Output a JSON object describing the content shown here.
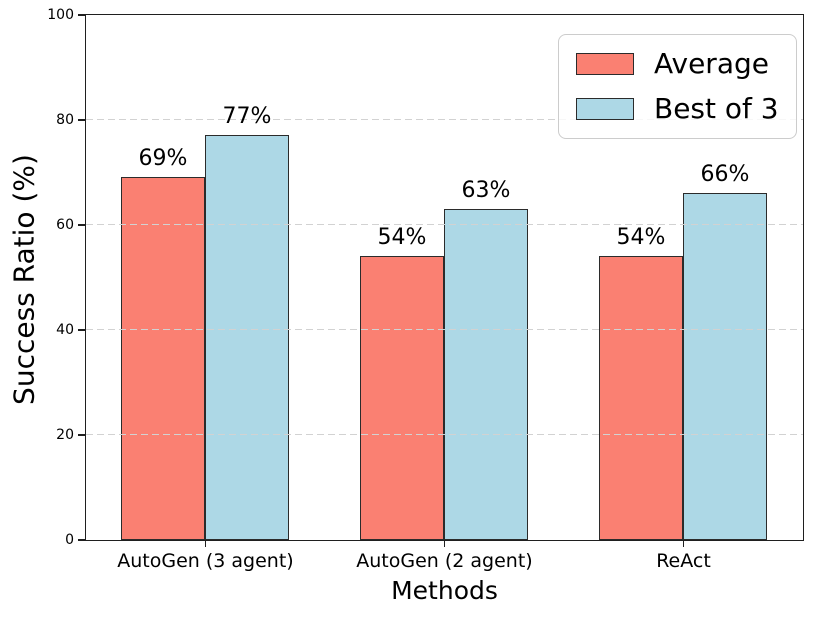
{
  "chart_data": {
    "type": "bar",
    "title": "",
    "xlabel": "Methods",
    "ylabel": "Success Ratio (%)",
    "categories": [
      "AutoGen (3 agent)",
      "AutoGen (2 agent)",
      "ReAct"
    ],
    "series": [
      {
        "name": "Average",
        "color": "#FA8072",
        "values": [
          69,
          54,
          54
        ],
        "labels": [
          "69%",
          "54%",
          "54%"
        ]
      },
      {
        "name": "Best of 3",
        "color": "#ADD8E6",
        "values": [
          77,
          63,
          66
        ],
        "labels": [
          "77%",
          "63%",
          "66%"
        ]
      }
    ],
    "ylim": [
      0,
      100
    ],
    "yticks": [
      0,
      20,
      40,
      60,
      80,
      100
    ],
    "grid": "horizontal-dashed",
    "grid_color": "#d2d2d2",
    "bar_edge_color": "#2b2b2b",
    "axis_color": "#1f1f1f",
    "legend_position": "upper-right",
    "legend_entries": [
      "Average",
      "Best of 3"
    ]
  }
}
